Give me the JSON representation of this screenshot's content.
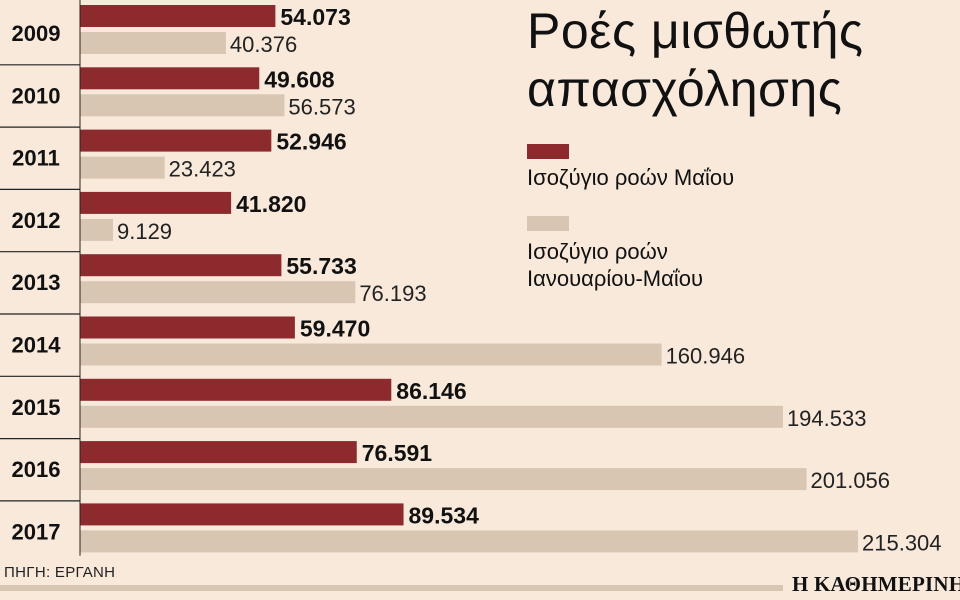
{
  "chart_data": {
    "type": "bar",
    "orientation": "horizontal",
    "title": "Ροές μισθωτής απασχόλησης",
    "categories": [
      "2009",
      "2010",
      "2011",
      "2012",
      "2013",
      "2014",
      "2015",
      "2016",
      "2017"
    ],
    "series": [
      {
        "name": "Ισοζύγιο ροών Μαΐου",
        "color": "#8c2a2e",
        "values": [
          54073,
          49608,
          52946,
          41820,
          55733,
          59470,
          86146,
          76591,
          89534
        ],
        "labels": [
          "54.073",
          "49.608",
          "52.946",
          "41.820",
          "55.733",
          "59.470",
          "86.146",
          "76.591",
          "89.534"
        ]
      },
      {
        "name": "Ισοζύγιο ροών Ιανουαρίου-Μαΐου",
        "color": "#d9c6b2",
        "values": [
          40376,
          56573,
          23423,
          9129,
          76193,
          160946,
          194533,
          201056,
          215304
        ],
        "labels": [
          "40.376",
          "56.573",
          "23.423",
          "9.129",
          "76.193",
          "160.946",
          "194.533",
          "201.056",
          "215.304"
        ]
      }
    ],
    "xlim": [
      0,
      225000
    ],
    "grid": false,
    "legend_position": "top-right"
  },
  "title_lines": [
    "Ροές μισθωτής",
    "απασχόλησης"
  ],
  "legend": {
    "item1_lines": [
      "Ισοζύγιο ροών Μαΐου"
    ],
    "item2_lines": [
      "Ισοζύγιο ροών",
      "Ιανουαρίου-Μαΐου"
    ]
  },
  "source": "ΠΗΓΗ: ΕΡΓΑΝΗ",
  "brand": "Η ΚΑΘΗΜΕΡΙΝΗ"
}
